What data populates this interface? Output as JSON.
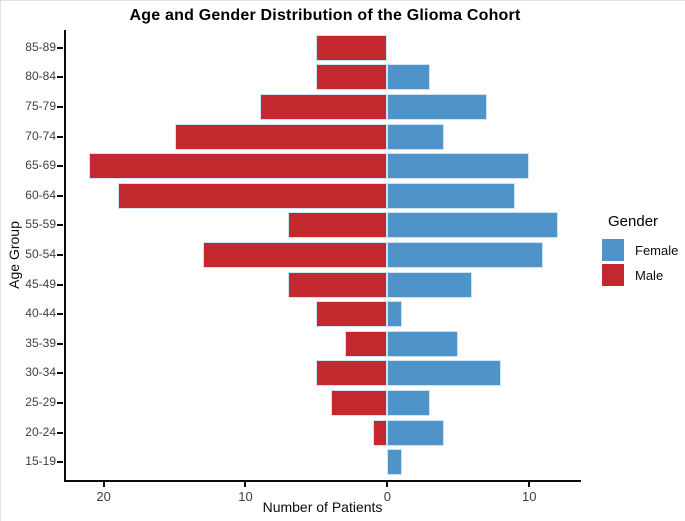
{
  "chart_data": {
    "type": "bar",
    "variant": "population-pyramid",
    "title": "Age and Gender Distribution of the Glioma Cohort",
    "xlabel": "Number of Patients",
    "ylabel": "Age Group",
    "categories": [
      "85-89",
      "80-84",
      "75-79",
      "70-74",
      "65-69",
      "60-64",
      "55-59",
      "50-54",
      "45-49",
      "40-44",
      "35-39",
      "30-34",
      "25-29",
      "20-24",
      "15-19"
    ],
    "series": [
      {
        "name": "Male",
        "side": "left",
        "color": "#C2282D",
        "values": [
          5,
          5,
          9,
          15,
          21,
          19,
          7,
          13,
          7,
          5,
          3,
          5,
          4,
          1,
          0
        ]
      },
      {
        "name": "Female",
        "side": "right",
        "color": "#4E94C8",
        "values": [
          0,
          3,
          7,
          4,
          10,
          9,
          12,
          11,
          6,
          1,
          5,
          8,
          3,
          4,
          1
        ]
      }
    ],
    "x_axis": {
      "ticks": [
        -20,
        -10,
        0,
        10
      ],
      "tick_labels": [
        "20",
        "10",
        "0",
        "10"
      ],
      "xlim": [
        -22.65,
        13.65
      ]
    },
    "legend": {
      "title": "Gender",
      "position": "right",
      "entries": [
        {
          "label": "Female",
          "color": "#4E94C8"
        },
        {
          "label": "Male",
          "color": "#C2282D"
        }
      ]
    },
    "grid": "off",
    "bar_border_color": "#CFE3F2",
    "axis_line_color": "#0d0d0d"
  }
}
